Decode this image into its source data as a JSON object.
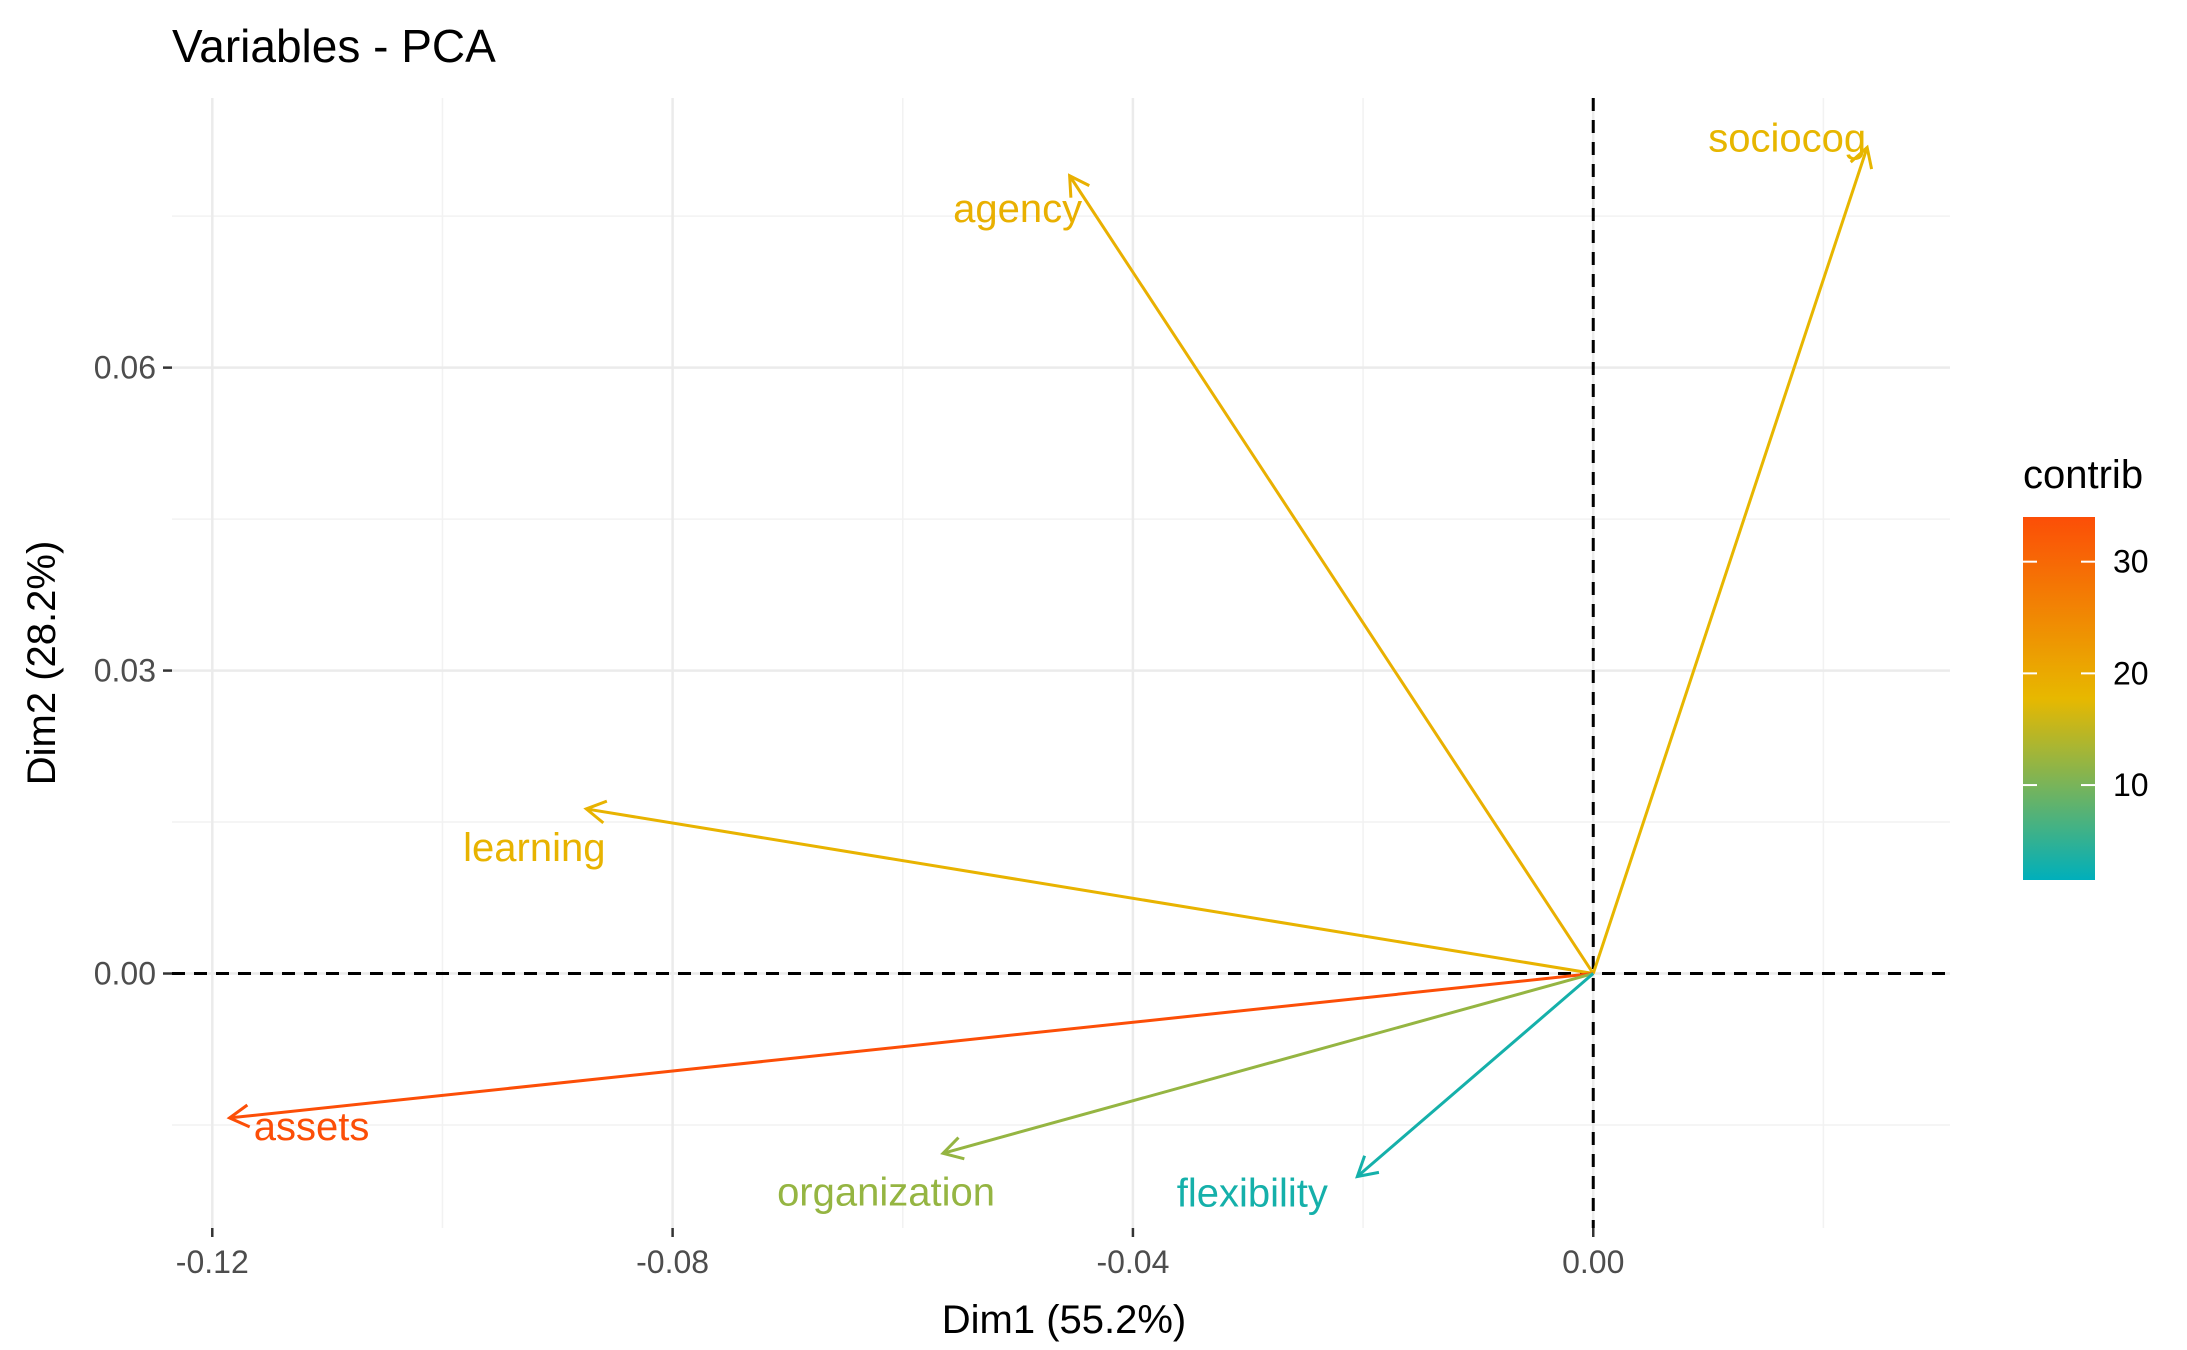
{
  "chart_data": {
    "type": "pca-variables",
    "title": "Variables - PCA",
    "xlabel": "Dim1 (55.2%)",
    "ylabel": "Dim2 (28.2%)",
    "xlim": [
      -0.1235,
      0.031
    ],
    "ylim": [
      -0.0252,
      0.0867
    ],
    "x_ticks": [
      -0.12,
      -0.08,
      -0.04,
      0.0
    ],
    "x_tick_labels": [
      "-0.12",
      "-0.08",
      "-0.04",
      "0.00"
    ],
    "y_ticks": [
      0.0,
      0.03,
      0.06
    ],
    "y_tick_labels": [
      "0.00",
      "0.03",
      "0.06"
    ],
    "x_minor": [
      -0.1,
      -0.06,
      -0.02,
      0.02
    ],
    "y_minor": [
      -0.015,
      0.015,
      0.045,
      0.075
    ],
    "grid": true,
    "legend": {
      "title": "contrib",
      "placement": "right",
      "min": 1.5,
      "max": 34,
      "ticks": [
        10,
        20,
        30
      ],
      "tick_labels": [
        "10",
        "20",
        "30"
      ],
      "gradient": [
        "#00AFBB",
        "#E7B800",
        "#FC4E07"
      ]
    },
    "variables": [
      {
        "name": "sociocog",
        "x": 0.0238,
        "y": 0.0818,
        "contrib": 18
      },
      {
        "name": "agency",
        "x": -0.0455,
        "y": 0.079,
        "contrib": 19
      },
      {
        "name": "learning",
        "x": -0.0875,
        "y": 0.0163,
        "contrib": 18.5
      },
      {
        "name": "assets",
        "x": -0.1185,
        "y": -0.0143,
        "contrib": 34
      },
      {
        "name": "organization",
        "x": -0.0565,
        "y": -0.0178,
        "contrib": 12
      },
      {
        "name": "flexibility",
        "x": -0.0205,
        "y": -0.0201,
        "contrib": 3
      }
    ]
  }
}
